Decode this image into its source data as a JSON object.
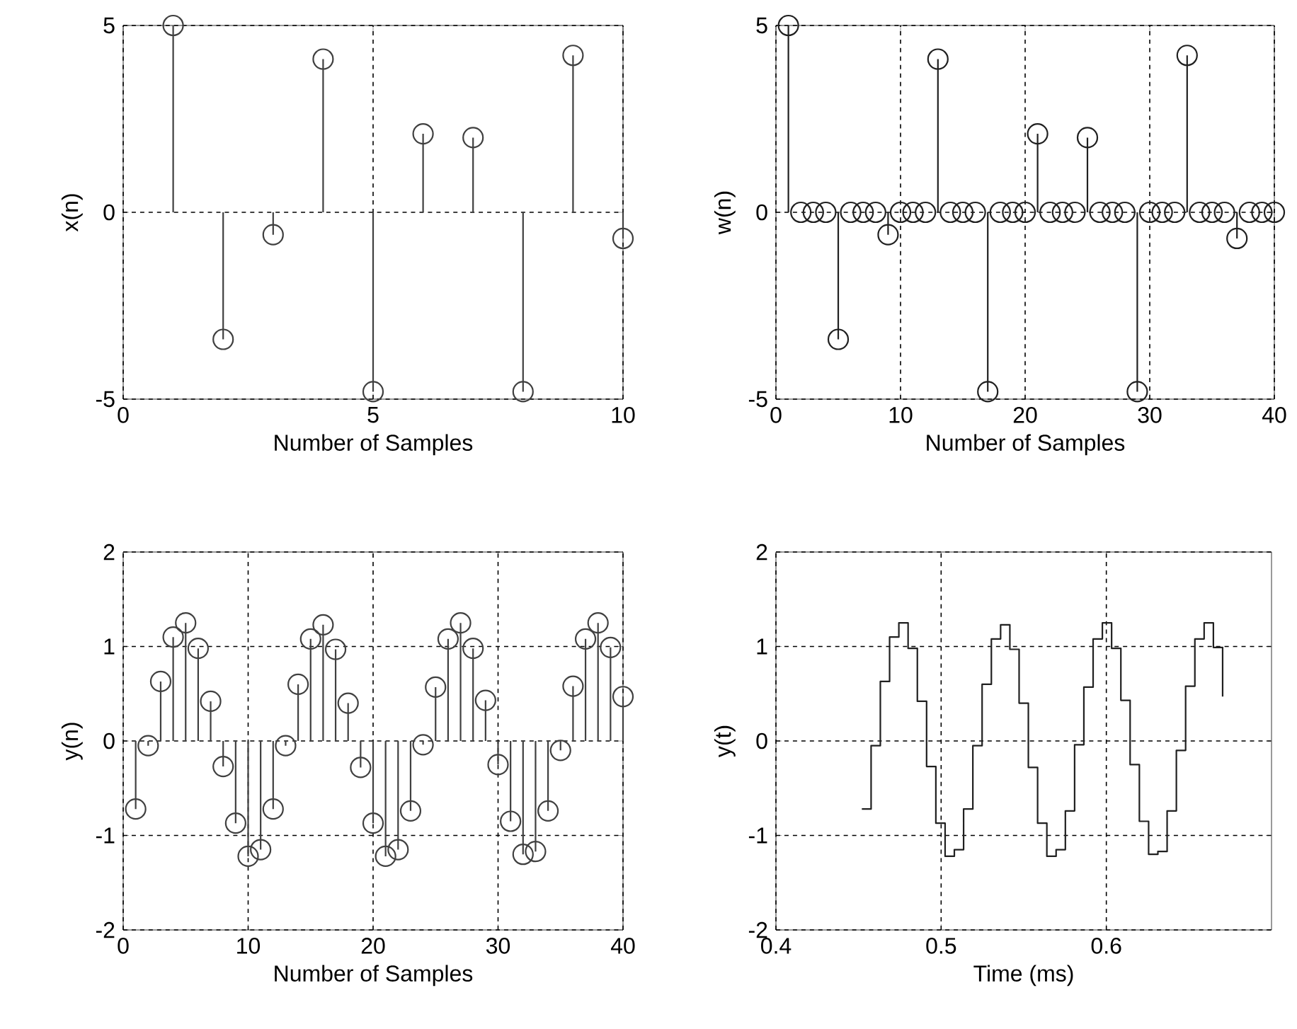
{
  "chart_data": [
    {
      "type": "lollipop",
      "xlabel": "Number of Samples",
      "ylabel": "x(n)",
      "x": [
        1,
        2,
        3,
        4,
        5,
        6,
        7,
        8,
        9,
        10
      ],
      "xlim": [
        0,
        10
      ],
      "xticks": [
        0,
        5,
        10
      ],
      "ylim": [
        -5,
        5
      ],
      "yticks": [
        -5,
        0,
        5
      ],
      "grid": true,
      "marker": "circle",
      "series": [
        {
          "color": "#404040",
          "values": [
            5,
            -3.4,
            -0.6,
            4.1,
            -4.8,
            2.1,
            2.0,
            -4.8,
            4.2,
            -0.7
          ]
        }
      ]
    },
    {
      "type": "lollipop",
      "xlabel": "Number of Samples",
      "ylabel": "w(n)",
      "x": [
        1,
        2,
        3,
        4,
        5,
        6,
        7,
        8,
        9,
        10,
        11,
        12,
        13,
        14,
        15,
        16,
        17,
        18,
        19,
        20,
        21,
        22,
        23,
        24,
        25,
        26,
        27,
        28,
        29,
        30,
        31,
        32,
        33,
        34,
        35,
        36,
        37,
        38,
        39,
        40
      ],
      "xlim": [
        0,
        40
      ],
      "xticks": [
        0,
        10,
        20,
        30,
        40
      ],
      "ylim": [
        -5,
        5
      ],
      "yticks": [
        -5,
        0,
        5
      ],
      "grid": true,
      "marker": "circle",
      "series": [
        {
          "color": "#202020",
          "values": [
            5,
            0,
            0,
            0,
            -3.4,
            0,
            0,
            0,
            -0.6,
            0,
            0,
            0,
            4.1,
            0,
            0,
            0,
            -4.8,
            0,
            0,
            0,
            2.1,
            0,
            0,
            0,
            2.0,
            0,
            0,
            0,
            -4.8,
            0,
            0,
            0,
            4.2,
            0,
            0,
            0,
            -0.7,
            0,
            0,
            0
          ]
        }
      ]
    },
    {
      "type": "lollipop",
      "xlabel": "Number of Samples",
      "ylabel": "y(n)",
      "x": [
        1,
        2,
        3,
        4,
        5,
        6,
        7,
        8,
        9,
        10,
        11,
        12,
        13,
        14,
        15,
        16,
        17,
        18,
        19,
        20,
        21,
        22,
        23,
        24,
        25,
        26,
        27,
        28,
        29,
        30,
        31,
        32,
        33,
        34,
        35,
        36,
        37,
        38,
        39,
        40
      ],
      "xlim": [
        0,
        40
      ],
      "xticks": [
        0,
        10,
        20,
        30,
        40
      ],
      "ylim": [
        -2,
        2
      ],
      "yticks": [
        -2,
        -1,
        0,
        1,
        2
      ],
      "grid": true,
      "marker": "circle",
      "series": [
        {
          "color": "#404040",
          "values": [
            -0.72,
            -0.05,
            0.63,
            1.1,
            1.25,
            0.98,
            0.42,
            -0.27,
            -0.87,
            -1.22,
            -1.15,
            -0.72,
            -0.05,
            0.6,
            1.08,
            1.23,
            0.97,
            0.4,
            -0.28,
            -0.87,
            -1.22,
            -1.15,
            -0.74,
            -0.04,
            0.57,
            1.08,
            1.25,
            0.98,
            0.43,
            -0.25,
            -0.85,
            -1.2,
            -1.17,
            -0.74,
            -0.1,
            0.58,
            1.08,
            1.25,
            0.99,
            0.47
          ]
        }
      ]
    },
    {
      "type": "step",
      "xlabel": "Time (ms)",
      "ylabel": "y(t)",
      "x": [
        0.452,
        0.4576,
        0.4632,
        0.4688,
        0.4744,
        0.48,
        0.4856,
        0.4912,
        0.4968,
        0.5024,
        0.508,
        0.5136,
        0.5192,
        0.5248,
        0.5304,
        0.536,
        0.5416,
        0.5472,
        0.5528,
        0.5584,
        0.564,
        0.5696,
        0.5752,
        0.5808,
        0.5864,
        0.592,
        0.5976,
        0.6032,
        0.6088,
        0.6144,
        0.62,
        0.6256,
        0.6312,
        0.6368,
        0.6424,
        0.648,
        0.6536,
        0.6592,
        0.6648,
        0.6704
      ],
      "xlim": [
        0.4,
        0.7
      ],
      "xticks": [
        0.4,
        0.5,
        0.6
      ],
      "ylim": [
        -2,
        2
      ],
      "yticks": [
        -2,
        -1,
        0,
        1,
        2
      ],
      "grid": true,
      "series": [
        {
          "color": "#202020",
          "values": [
            -0.72,
            -0.05,
            0.63,
            1.1,
            1.25,
            0.98,
            0.42,
            -0.27,
            -0.87,
            -1.22,
            -1.15,
            -0.72,
            -0.05,
            0.6,
            1.08,
            1.23,
            0.97,
            0.4,
            -0.28,
            -0.87,
            -1.22,
            -1.15,
            -0.74,
            -0.04,
            0.57,
            1.08,
            1.25,
            0.98,
            0.43,
            -0.25,
            -0.85,
            -1.2,
            -1.17,
            -0.74,
            -0.1,
            0.58,
            1.08,
            1.25,
            0.99,
            0.47
          ]
        }
      ]
    }
  ]
}
